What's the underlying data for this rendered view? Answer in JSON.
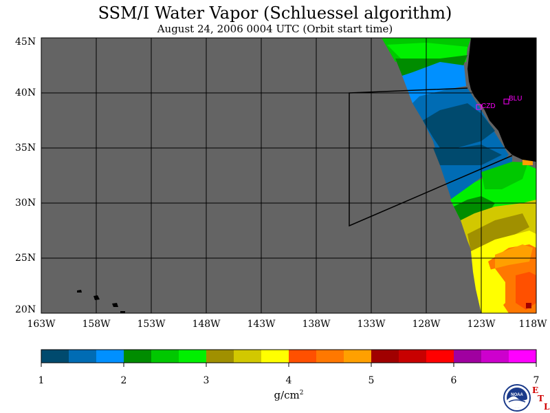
{
  "title": "SSM/I Water Vapor (Schluessel algorithm)",
  "subtitle": "August 24, 2006  0004 UTC  (Orbit start time)",
  "lat_labels": [
    "45N",
    "40N",
    "35N",
    "30N",
    "25N",
    "20N"
  ],
  "lon_labels": [
    "163W",
    "158W",
    "153W",
    "148W",
    "143W",
    "138W",
    "133W",
    "128W",
    "123W",
    "118W"
  ],
  "stations": [
    {
      "id": "CZD",
      "label": "CZD"
    },
    {
      "id": "BLU",
      "label": "BLU"
    }
  ],
  "colorbar": {
    "ticks": [
      "1",
      "2",
      "3",
      "4",
      "5",
      "6",
      "7"
    ],
    "units": "g/cm",
    "units_sup": "2",
    "colors": [
      "#004a6e",
      "#006cb4",
      "#0090ff",
      "#008c00",
      "#00c800",
      "#00f000",
      "#a09000",
      "#d2c800",
      "#ffff00",
      "#ff5000",
      "#ff7800",
      "#ffa000",
      "#a00000",
      "#c80000",
      "#ff0000",
      "#a000a0",
      "#cd00cd",
      "#ff00ff"
    ]
  },
  "logo": {
    "name": "NOAA",
    "etl_text": [
      "E",
      "T",
      "L"
    ]
  },
  "colors": {
    "land": "#000000",
    "no_data": "#646464",
    "station": "#ff00ff"
  }
}
